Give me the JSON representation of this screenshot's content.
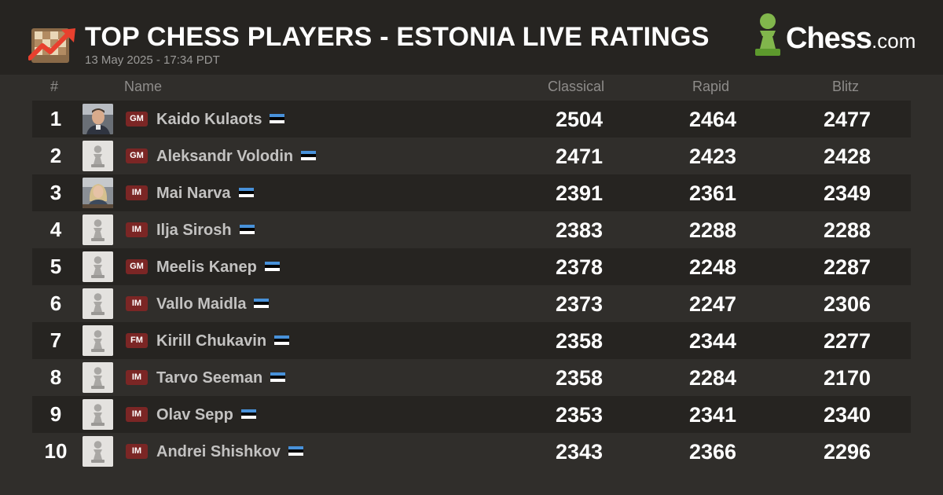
{
  "header": {
    "title": "TOP CHESS PLAYERS - ESTONIA LIVE RATINGS",
    "timestamp": "13 May 2025 - 17:34 PDT",
    "brand": "Chess",
    "brand_suffix": ".com"
  },
  "columns": {
    "rank": "#",
    "name": "Name",
    "classical": "Classical",
    "rapid": "Rapid",
    "blitz": "Blitz"
  },
  "colors": {
    "background": "#302e2b",
    "row_dark": "#262421",
    "badge": "#7b2625",
    "brand_green": "#81b64c",
    "flag_blue": "#4891d9",
    "flag_black": "#000000",
    "flag_white": "#ffffff"
  },
  "players": [
    {
      "rank": "1",
      "title": "GM",
      "name": "Kaido Kulaots",
      "classical": "2504",
      "rapid": "2464",
      "blitz": "2477",
      "avatar": "photo-male"
    },
    {
      "rank": "2",
      "title": "GM",
      "name": "Aleksandr Volodin",
      "classical": "2471",
      "rapid": "2423",
      "blitz": "2428",
      "avatar": "pawn-icon"
    },
    {
      "rank": "3",
      "title": "IM",
      "name": "Mai Narva",
      "classical": "2391",
      "rapid": "2361",
      "blitz": "2349",
      "avatar": "photo-female"
    },
    {
      "rank": "4",
      "title": "IM",
      "name": "Ilja Sirosh",
      "classical": "2383",
      "rapid": "2288",
      "blitz": "2288",
      "avatar": "pawn-icon"
    },
    {
      "rank": "5",
      "title": "GM",
      "name": "Meelis Kanep",
      "classical": "2378",
      "rapid": "2248",
      "blitz": "2287",
      "avatar": "pawn-icon"
    },
    {
      "rank": "6",
      "title": "IM",
      "name": "Vallo Maidla",
      "classical": "2373",
      "rapid": "2247",
      "blitz": "2306",
      "avatar": "pawn-icon"
    },
    {
      "rank": "7",
      "title": "FM",
      "name": "Kirill Chukavin",
      "classical": "2358",
      "rapid": "2344",
      "blitz": "2277",
      "avatar": "pawn-icon"
    },
    {
      "rank": "8",
      "title": "IM",
      "name": "Tarvo Seeman",
      "classical": "2358",
      "rapid": "2284",
      "blitz": "2170",
      "avatar": "pawn-icon"
    },
    {
      "rank": "9",
      "title": "IM",
      "name": "Olav Sepp",
      "classical": "2353",
      "rapid": "2341",
      "blitz": "2340",
      "avatar": "pawn-icon"
    },
    {
      "rank": "10",
      "title": "IM",
      "name": "Andrei Shishkov",
      "classical": "2343",
      "rapid": "2366",
      "blitz": "2296",
      "avatar": "pawn-icon"
    }
  ]
}
